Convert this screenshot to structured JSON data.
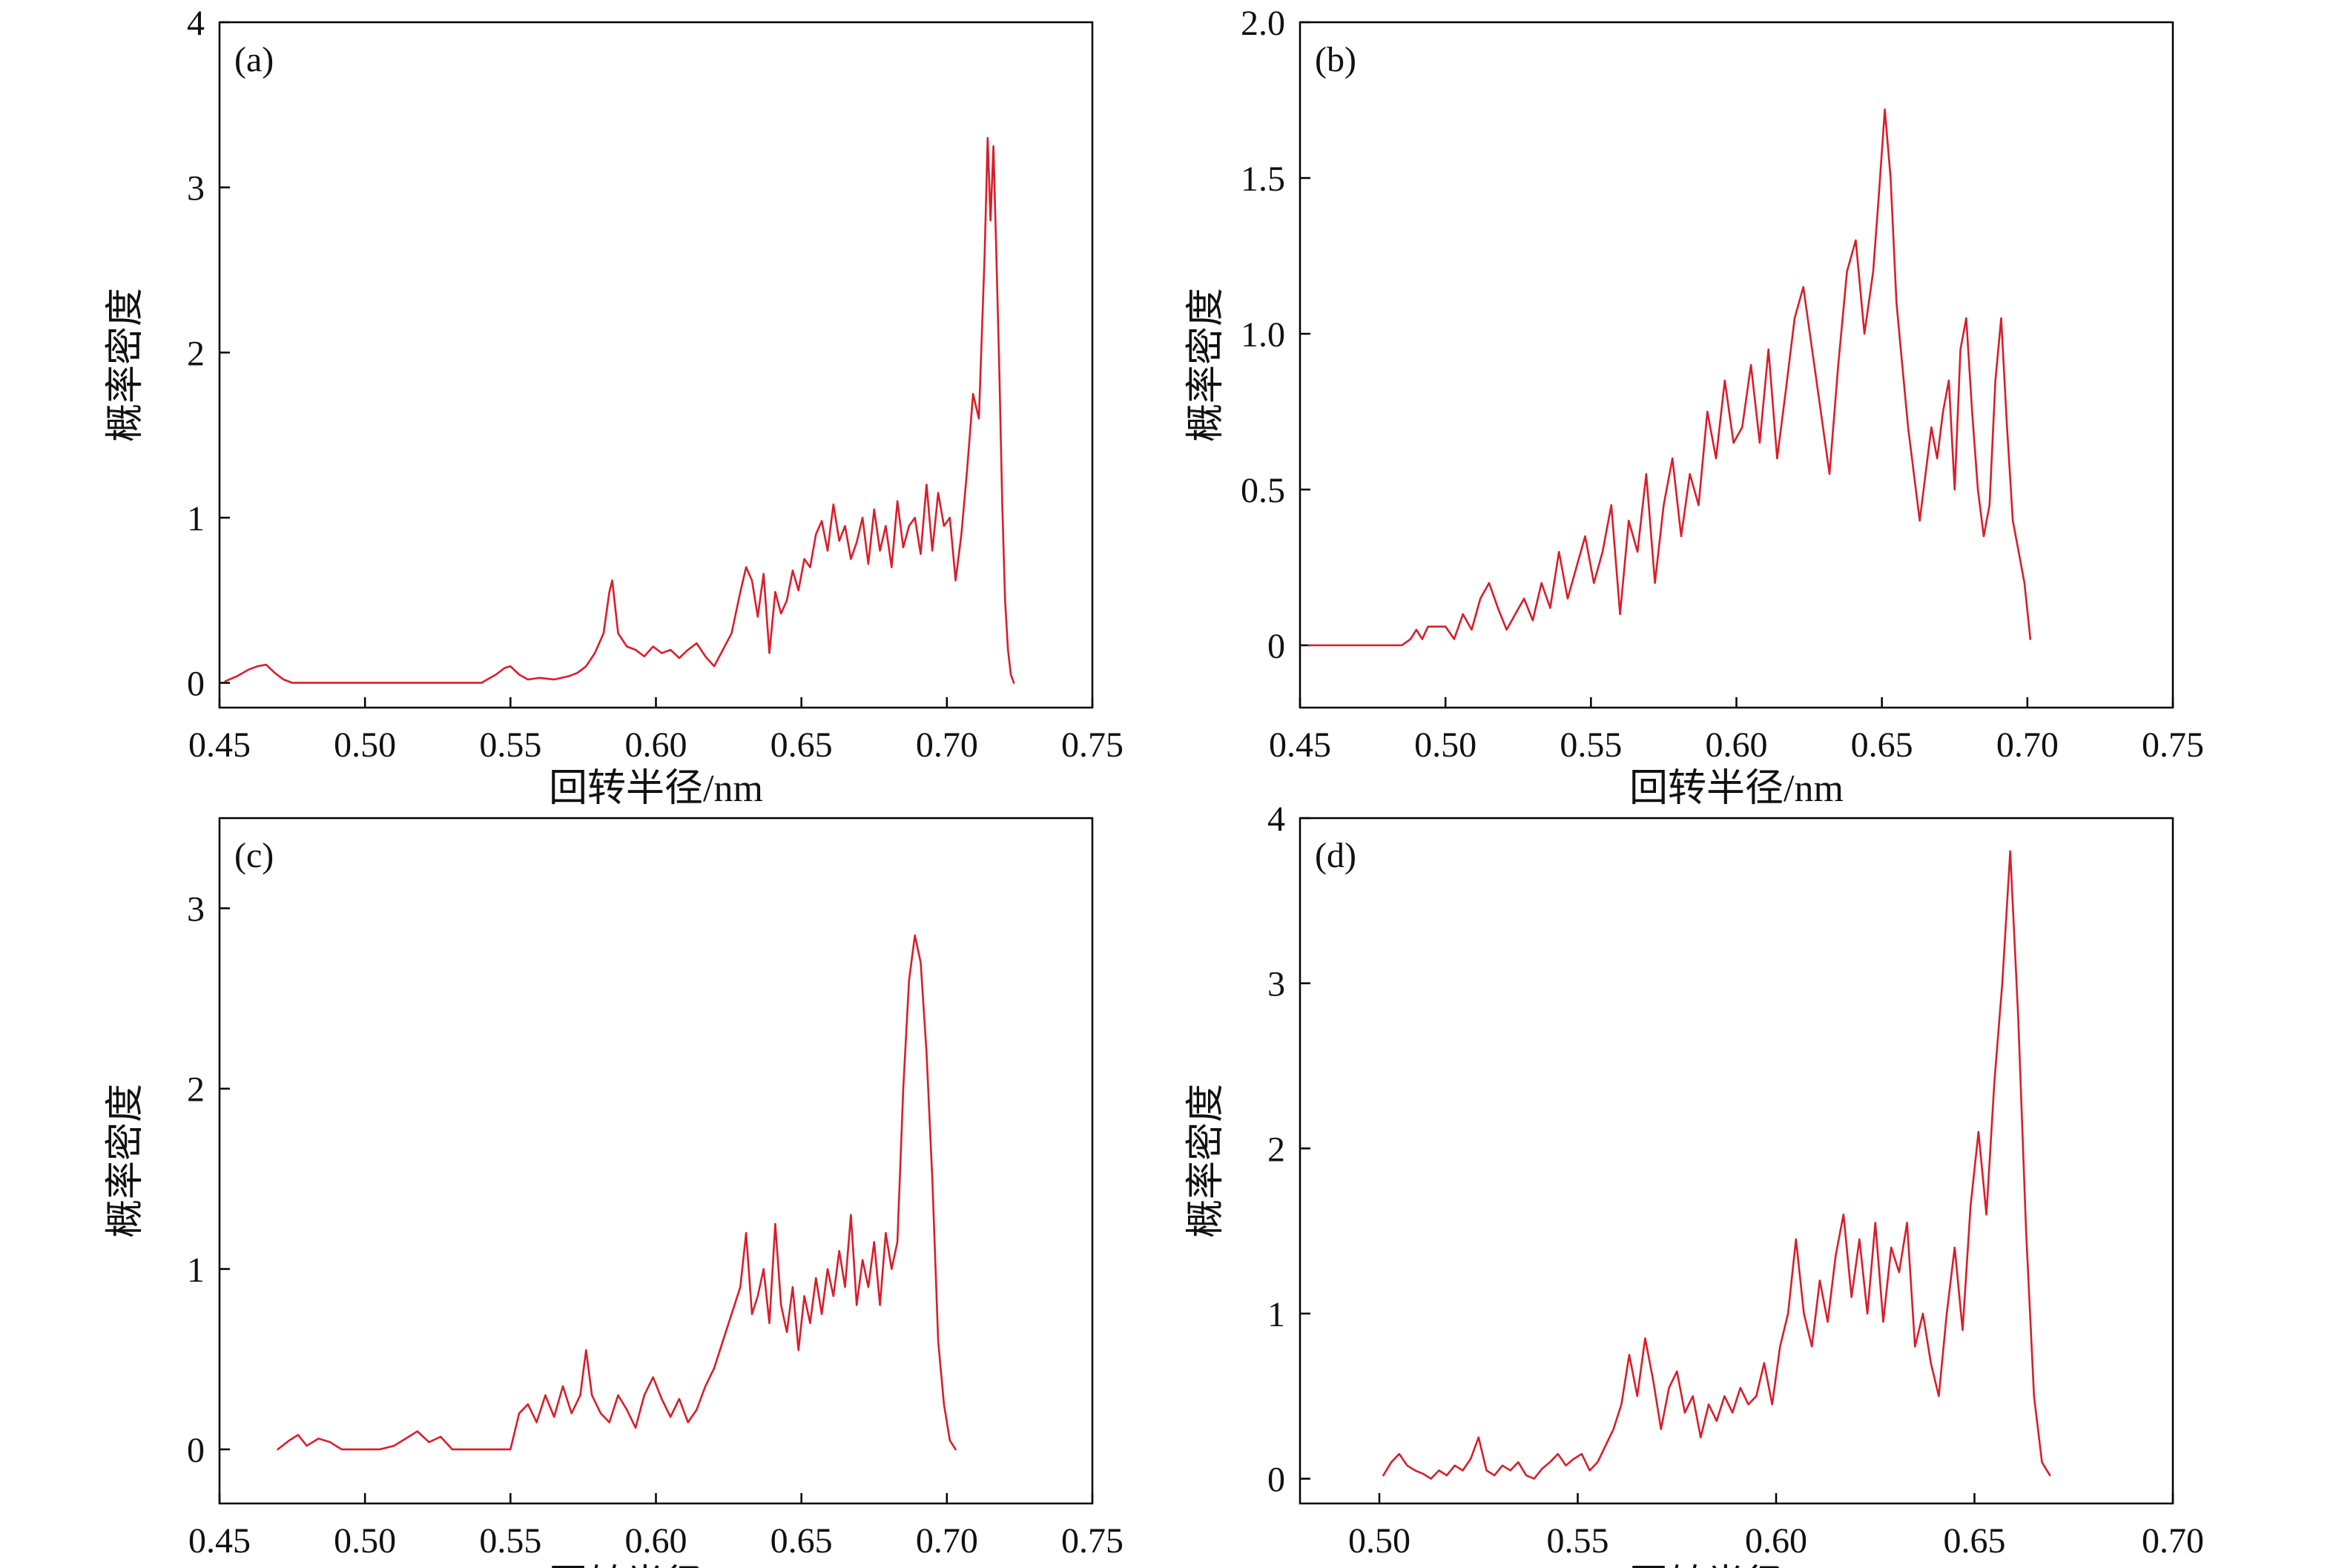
{
  "figure": {
    "line_color": "#d81e2a",
    "axis_color": "#000000"
  },
  "chart_data": [
    {
      "panel_label": "(a)",
      "type": "line",
      "xlabel": "回转半径/nm",
      "ylabel": "概率密度",
      "xlim": [
        0.45,
        0.75
      ],
      "ylim": [
        -0.15,
        4.0
      ],
      "xticks": [
        "0.45",
        "0.50",
        "0.55",
        "0.60",
        "0.65",
        "0.70",
        "0.75"
      ],
      "yticks": [
        "0",
        "1",
        "2",
        "3",
        "4"
      ],
      "grid": false,
      "legend": "none",
      "series": [
        {
          "x": [
            0.452,
            0.456,
            0.46,
            0.463,
            0.466,
            0.469,
            0.472,
            0.475,
            0.48,
            0.49,
            0.5,
            0.51,
            0.52,
            0.53,
            0.54,
            0.545,
            0.548,
            0.55,
            0.553,
            0.556,
            0.56,
            0.565,
            0.57,
            0.573,
            0.576,
            0.579,
            0.582,
            0.584,
            0.585,
            0.587,
            0.59,
            0.593,
            0.596,
            0.599,
            0.602,
            0.605,
            0.608,
            0.611,
            0.614,
            0.617,
            0.62,
            0.623,
            0.626,
            0.629,
            0.631,
            0.633,
            0.635,
            0.637,
            0.639,
            0.641,
            0.643,
            0.645,
            0.647,
            0.649,
            0.651,
            0.653,
            0.655,
            0.657,
            0.659,
            0.661,
            0.663,
            0.665,
            0.667,
            0.669,
            0.671,
            0.673,
            0.675,
            0.677,
            0.679,
            0.681,
            0.683,
            0.685,
            0.687,
            0.689,
            0.691,
            0.693,
            0.695,
            0.697,
            0.699,
            0.701,
            0.703,
            0.705,
            0.707,
            0.709,
            0.711,
            0.713,
            0.714,
            0.715,
            0.716,
            0.717,
            0.718,
            0.719,
            0.72,
            0.721,
            0.722,
            0.723
          ],
          "y": [
            0.01,
            0.04,
            0.08,
            0.1,
            0.11,
            0.06,
            0.02,
            0.0,
            0.0,
            0.0,
            0.0,
            0.0,
            0.0,
            0.0,
            0.0,
            0.05,
            0.09,
            0.1,
            0.05,
            0.02,
            0.03,
            0.02,
            0.04,
            0.06,
            0.1,
            0.18,
            0.3,
            0.55,
            0.62,
            0.3,
            0.22,
            0.2,
            0.16,
            0.22,
            0.18,
            0.2,
            0.15,
            0.2,
            0.24,
            0.16,
            0.1,
            0.2,
            0.3,
            0.55,
            0.7,
            0.62,
            0.4,
            0.66,
            0.18,
            0.55,
            0.42,
            0.5,
            0.68,
            0.56,
            0.75,
            0.7,
            0.9,
            0.98,
            0.8,
            1.08,
            0.86,
            0.95,
            0.75,
            0.85,
            1.0,
            0.72,
            1.05,
            0.8,
            0.95,
            0.7,
            1.1,
            0.82,
            0.95,
            1.0,
            0.78,
            1.2,
            0.8,
            1.15,
            0.95,
            1.0,
            0.62,
            0.9,
            1.3,
            1.75,
            1.6,
            2.6,
            3.3,
            2.8,
            3.25,
            2.6,
            1.9,
            1.1,
            0.5,
            0.2,
            0.05,
            0.0
          ]
        }
      ]
    },
    {
      "panel_label": "(b)",
      "type": "line",
      "xlabel": "回转半径/nm",
      "ylabel": "概率密度",
      "xlim": [
        0.45,
        0.75
      ],
      "ylim": [
        -0.2,
        2.0
      ],
      "xticks": [
        "0.45",
        "0.50",
        "0.55",
        "0.60",
        "0.65",
        "0.70",
        "0.75"
      ],
      "yticks": [
        "0",
        "0.5",
        "1.0",
        "1.5",
        "2.0"
      ],
      "grid": false,
      "legend": "none",
      "series": [
        {
          "x": [
            0.453,
            0.46,
            0.47,
            0.48,
            0.485,
            0.488,
            0.49,
            0.492,
            0.494,
            0.496,
            0.5,
            0.503,
            0.506,
            0.509,
            0.512,
            0.515,
            0.518,
            0.521,
            0.524,
            0.527,
            0.53,
            0.533,
            0.536,
            0.539,
            0.542,
            0.545,
            0.548,
            0.551,
            0.554,
            0.557,
            0.56,
            0.563,
            0.566,
            0.569,
            0.572,
            0.575,
            0.578,
            0.581,
            0.584,
            0.587,
            0.59,
            0.593,
            0.596,
            0.599,
            0.602,
            0.605,
            0.608,
            0.611,
            0.614,
            0.617,
            0.62,
            0.623,
            0.626,
            0.629,
            0.632,
            0.635,
            0.638,
            0.641,
            0.644,
            0.647,
            0.649,
            0.651,
            0.653,
            0.655,
            0.657,
            0.659,
            0.661,
            0.663,
            0.665,
            0.667,
            0.669,
            0.671,
            0.673,
            0.675,
            0.677,
            0.679,
            0.681,
            0.683,
            0.685,
            0.687,
            0.689,
            0.691,
            0.693,
            0.695,
            0.697,
            0.699,
            0.701
          ],
          "y": [
            0.0,
            0.0,
            0.0,
            0.0,
            0.0,
            0.02,
            0.05,
            0.02,
            0.06,
            0.06,
            0.06,
            0.02,
            0.1,
            0.05,
            0.15,
            0.2,
            0.12,
            0.05,
            0.1,
            0.15,
            0.08,
            0.2,
            0.12,
            0.3,
            0.15,
            0.25,
            0.35,
            0.2,
            0.3,
            0.45,
            0.1,
            0.4,
            0.3,
            0.55,
            0.2,
            0.45,
            0.6,
            0.35,
            0.55,
            0.45,
            0.75,
            0.6,
            0.85,
            0.65,
            0.7,
            0.9,
            0.65,
            0.95,
            0.6,
            0.82,
            1.05,
            1.15,
            0.95,
            0.75,
            0.55,
            0.9,
            1.2,
            1.3,
            1.0,
            1.2,
            1.45,
            1.72,
            1.5,
            1.1,
            0.9,
            0.7,
            0.55,
            0.4,
            0.55,
            0.7,
            0.6,
            0.75,
            0.85,
            0.5,
            0.95,
            1.05,
            0.75,
            0.5,
            0.35,
            0.45,
            0.85,
            1.05,
            0.7,
            0.4,
            0.3,
            0.2,
            0.02
          ]
        }
      ]
    },
    {
      "panel_label": "(c)",
      "type": "line",
      "xlabel": "回转半径/nm",
      "ylabel": "概率密度",
      "xlim": [
        0.45,
        0.75
      ],
      "ylim": [
        -0.3,
        3.5
      ],
      "xticks": [
        "0.45",
        "0.50",
        "0.55",
        "0.60",
        "0.65",
        "0.70",
        "0.75"
      ],
      "yticks": [
        "0",
        "1",
        "2",
        "3"
      ],
      "grid": false,
      "legend": "none",
      "series": [
        {
          "x": [
            0.47,
            0.474,
            0.477,
            0.48,
            0.484,
            0.488,
            0.492,
            0.496,
            0.5,
            0.505,
            0.51,
            0.514,
            0.518,
            0.522,
            0.526,
            0.53,
            0.535,
            0.54,
            0.545,
            0.55,
            0.553,
            0.556,
            0.559,
            0.562,
            0.565,
            0.568,
            0.571,
            0.574,
            0.576,
            0.578,
            0.581,
            0.584,
            0.587,
            0.59,
            0.593,
            0.596,
            0.599,
            0.602,
            0.605,
            0.608,
            0.611,
            0.614,
            0.617,
            0.62,
            0.623,
            0.626,
            0.629,
            0.631,
            0.633,
            0.635,
            0.637,
            0.639,
            0.641,
            0.643,
            0.645,
            0.647,
            0.649,
            0.651,
            0.653,
            0.655,
            0.657,
            0.659,
            0.661,
            0.663,
            0.665,
            0.667,
            0.669,
            0.671,
            0.673,
            0.675,
            0.677,
            0.679,
            0.681,
            0.683,
            0.685,
            0.687,
            0.689,
            0.691,
            0.693,
            0.695,
            0.697,
            0.699,
            0.701,
            0.703
          ],
          "y": [
            0.0,
            0.05,
            0.08,
            0.02,
            0.06,
            0.04,
            0.0,
            0.0,
            0.0,
            0.0,
            0.02,
            0.06,
            0.1,
            0.04,
            0.07,
            0.0,
            0.0,
            0.0,
            0.0,
            0.0,
            0.2,
            0.25,
            0.15,
            0.3,
            0.18,
            0.35,
            0.2,
            0.3,
            0.55,
            0.3,
            0.2,
            0.15,
            0.3,
            0.22,
            0.12,
            0.3,
            0.4,
            0.28,
            0.18,
            0.28,
            0.15,
            0.22,
            0.35,
            0.45,
            0.6,
            0.75,
            0.9,
            1.2,
            0.75,
            0.85,
            1.0,
            0.7,
            1.25,
            0.8,
            0.65,
            0.9,
            0.55,
            0.85,
            0.7,
            0.95,
            0.75,
            1.0,
            0.85,
            1.1,
            0.9,
            1.3,
            0.8,
            1.05,
            0.9,
            1.15,
            0.8,
            1.2,
            1.0,
            1.15,
            2.0,
            2.6,
            2.85,
            2.7,
            2.2,
            1.5,
            0.6,
            0.25,
            0.05,
            0.0
          ]
        }
      ]
    },
    {
      "panel_label": "(d)",
      "type": "line",
      "xlabel": "回转半径/nm",
      "ylabel": "概率密度",
      "xlim": [
        0.48,
        0.7
      ],
      "ylim": [
        -0.15,
        4.0
      ],
      "xticks": [
        "0.50",
        "0.55",
        "0.60",
        "0.65",
        "0.70"
      ],
      "yticks": [
        "0",
        "1",
        "2",
        "3",
        "4"
      ],
      "grid": false,
      "legend": "none",
      "series": [
        {
          "x": [
            0.501,
            0.503,
            0.505,
            0.507,
            0.509,
            0.511,
            0.513,
            0.515,
            0.517,
            0.519,
            0.521,
            0.523,
            0.525,
            0.527,
            0.529,
            0.531,
            0.533,
            0.535,
            0.537,
            0.539,
            0.541,
            0.543,
            0.545,
            0.547,
            0.549,
            0.551,
            0.553,
            0.555,
            0.557,
            0.559,
            0.561,
            0.563,
            0.565,
            0.567,
            0.569,
            0.571,
            0.573,
            0.575,
            0.577,
            0.579,
            0.581,
            0.583,
            0.585,
            0.587,
            0.589,
            0.591,
            0.593,
            0.595,
            0.597,
            0.599,
            0.601,
            0.603,
            0.605,
            0.607,
            0.609,
            0.611,
            0.613,
            0.615,
            0.617,
            0.619,
            0.621,
            0.623,
            0.625,
            0.627,
            0.629,
            0.631,
            0.633,
            0.635,
            0.637,
            0.639,
            0.641,
            0.643,
            0.645,
            0.647,
            0.649,
            0.651,
            0.653,
            0.655,
            0.657,
            0.659,
            0.661,
            0.663,
            0.665,
            0.667,
            0.669
          ],
          "y": [
            0.02,
            0.1,
            0.15,
            0.08,
            0.05,
            0.03,
            0.0,
            0.05,
            0.02,
            0.08,
            0.05,
            0.12,
            0.25,
            0.05,
            0.02,
            0.08,
            0.05,
            0.1,
            0.02,
            0.0,
            0.06,
            0.1,
            0.15,
            0.08,
            0.12,
            0.15,
            0.05,
            0.1,
            0.2,
            0.3,
            0.45,
            0.75,
            0.5,
            0.85,
            0.6,
            0.3,
            0.55,
            0.65,
            0.4,
            0.5,
            0.25,
            0.45,
            0.35,
            0.5,
            0.4,
            0.55,
            0.45,
            0.5,
            0.7,
            0.45,
            0.8,
            1.0,
            1.45,
            1.0,
            0.8,
            1.2,
            0.95,
            1.35,
            1.6,
            1.1,
            1.45,
            1.0,
            1.55,
            0.95,
            1.4,
            1.25,
            1.55,
            0.8,
            1.0,
            0.7,
            0.5,
            1.0,
            1.4,
            0.9,
            1.65,
            2.1,
            1.6,
            2.4,
            3.0,
            3.8,
            2.8,
            1.5,
            0.5,
            0.1,
            0.02
          ]
        }
      ]
    }
  ]
}
